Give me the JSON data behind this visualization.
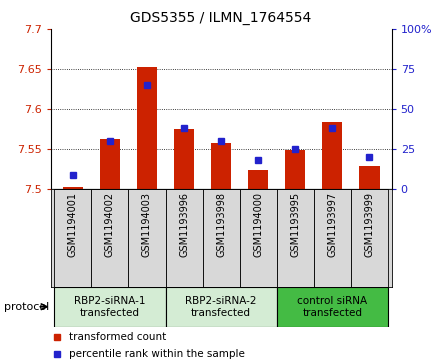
{
  "title": "GDS5355 / ILMN_1764554",
  "samples": [
    "GSM1194001",
    "GSM1194002",
    "GSM1194003",
    "GSM1193996",
    "GSM1193998",
    "GSM1194000",
    "GSM1193995",
    "GSM1193997",
    "GSM1193999"
  ],
  "red_values": [
    7.502,
    7.562,
    7.652,
    7.575,
    7.557,
    7.523,
    7.548,
    7.583,
    7.529
  ],
  "blue_values": [
    8.5,
    30.0,
    65.0,
    38.0,
    30.0,
    18.0,
    25.0,
    38.0,
    20.0
  ],
  "ylim_left": [
    7.5,
    7.7
  ],
  "ylim_right": [
    0,
    100
  ],
  "yticks_left": [
    7.5,
    7.55,
    7.6,
    7.65,
    7.7
  ],
  "yticks_right": [
    0,
    25,
    50,
    75,
    100
  ],
  "ytick_labels_left": [
    "7.5",
    "7.55",
    "7.6",
    "7.65",
    "7.7"
  ],
  "ytick_labels_right": [
    "0",
    "25",
    "50",
    "75",
    "100%"
  ],
  "groups": [
    {
      "label": "RBP2-siRNA-1\ntransfected",
      "indices": [
        0,
        1,
        2
      ],
      "color": "#d4ecd4"
    },
    {
      "label": "RBP2-siRNA-2\ntransfected",
      "indices": [
        3,
        4,
        5
      ],
      "color": "#d4ecd4"
    },
    {
      "label": "control siRNA\ntransfected",
      "indices": [
        6,
        7,
        8
      ],
      "color": "#44bb44"
    }
  ],
  "bar_color": "#cc2200",
  "dot_color": "#2222cc",
  "baseline": 7.5,
  "sample_bg_color": "#d8d8d8",
  "protocol_label": "protocol",
  "legend_items": [
    {
      "color": "#cc2200",
      "label": "transformed count"
    },
    {
      "color": "#2222cc",
      "label": "percentile rank within the sample"
    }
  ]
}
